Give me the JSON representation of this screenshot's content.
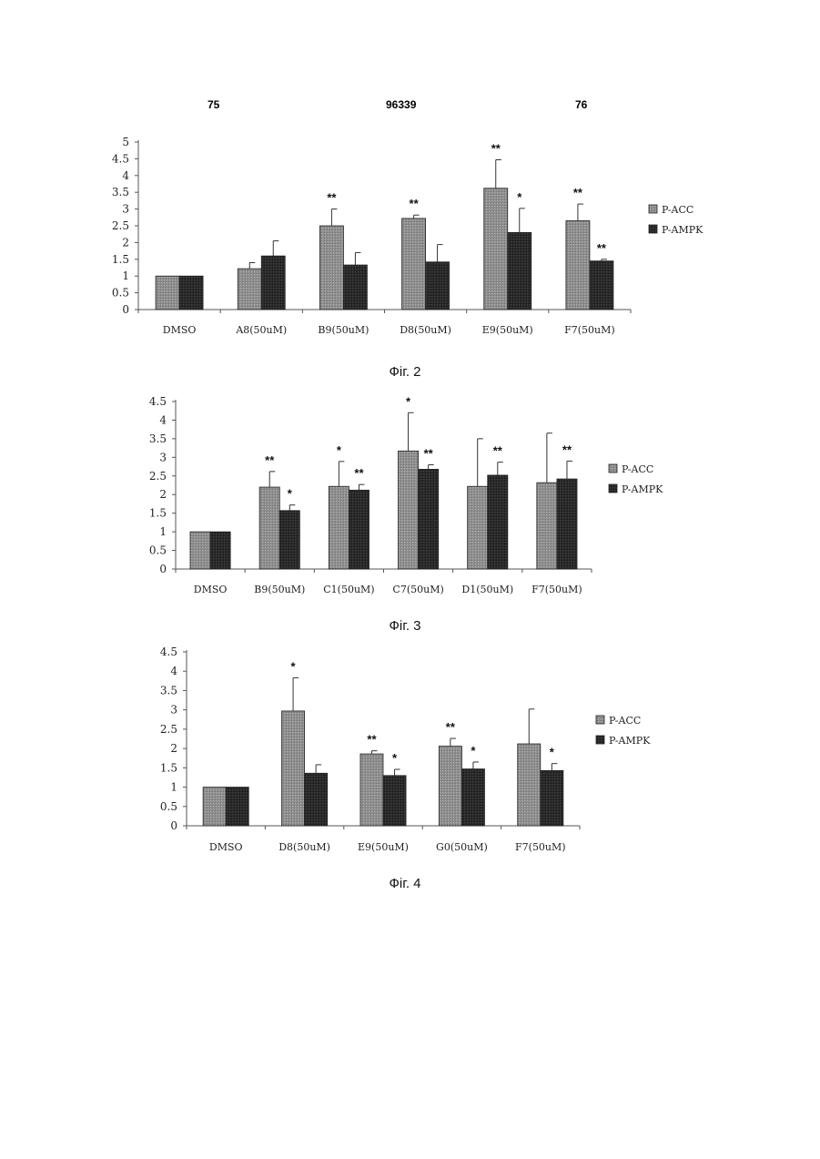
{
  "header": {
    "left": "75",
    "center": "96339",
    "right": "76"
  },
  "colors": {
    "p_acc": "#8f8f8f",
    "p_ampk": "#2b2b2b",
    "axis": "#555555"
  },
  "chart_data": [
    {
      "type": "bar",
      "caption": "Фіг. 2",
      "categories": [
        "DMSO",
        "A8(50uM)",
        "B9(50uM)",
        "D8(50uM)",
        "E9(50uM)",
        "F7(50uM)"
      ],
      "series": [
        {
          "name": "P-ACC",
          "values": [
            1,
            1.22,
            2.5,
            2.72,
            3.62,
            2.65
          ],
          "errors": [
            0,
            0.18,
            0.5,
            0.1,
            0.85,
            0.5
          ],
          "sig": [
            "",
            "",
            "**",
            "**",
            "**",
            "**"
          ]
        },
        {
          "name": "P-AMPK",
          "values": [
            1,
            1.6,
            1.33,
            1.42,
            2.3,
            1.45
          ],
          "errors": [
            0,
            0.45,
            0.37,
            0.52,
            0.72,
            0.05
          ],
          "sig": [
            "",
            "",
            "",
            "",
            "*",
            "**"
          ]
        }
      ],
      "ylim": [
        0,
        5
      ],
      "yticks": [
        0,
        0.5,
        1,
        1.5,
        2,
        2.5,
        3,
        3.5,
        4,
        4.5,
        5
      ],
      "ytick_labels": [
        "0",
        "0.5",
        "1",
        "1.5",
        "2",
        "2.5",
        "3",
        "3.5",
        "4",
        "4.5",
        "5"
      ],
      "legend_position": "right"
    },
    {
      "type": "bar",
      "caption": "Фіг. 3",
      "categories": [
        "DMSO",
        "B9(50uM)",
        "C1(50uM)",
        "C7(50uM)",
        "D1(50uM)",
        "F7(50uM)"
      ],
      "series": [
        {
          "name": "P-ACC",
          "values": [
            1,
            2.2,
            2.22,
            3.17,
            2.22,
            2.32
          ],
          "errors": [
            0,
            0.42,
            0.67,
            1.03,
            1.28,
            1.33
          ],
          "sig": [
            "",
            "**",
            "*",
            "*",
            "",
            ""
          ]
        },
        {
          "name": "P-AMPK",
          "values": [
            1,
            1.57,
            2.12,
            2.68,
            2.52,
            2.42
          ],
          "errors": [
            0,
            0.15,
            0.15,
            0.12,
            0.35,
            0.48
          ],
          "sig": [
            "",
            "*",
            "**",
            "**",
            "**",
            "**"
          ]
        }
      ],
      "ylim": [
        0,
        4.5
      ],
      "yticks": [
        0,
        0.5,
        1,
        1.5,
        2,
        2.5,
        3,
        3.5,
        4,
        4.5
      ],
      "ytick_labels": [
        "0",
        "0.5",
        "1",
        "1.5",
        "2",
        "2.5",
        "3",
        "3.5",
        "4",
        "4.5"
      ],
      "legend_position": "right"
    },
    {
      "type": "bar",
      "caption": "Фіг. 4",
      "categories": [
        "DMSO",
        "D8(50uM)",
        "E9(50uM)",
        "G0(50uM)",
        "F7(50uM)"
      ],
      "series": [
        {
          "name": "P-ACC",
          "values": [
            1,
            2.97,
            1.86,
            2.06,
            2.12
          ],
          "errors": [
            0,
            0.86,
            0.08,
            0.2,
            0.9
          ],
          "sig": [
            "",
            "*",
            "**",
            "**",
            ""
          ]
        },
        {
          "name": "P-AMPK",
          "values": [
            1,
            1.36,
            1.3,
            1.47,
            1.43
          ],
          "errors": [
            0,
            0.22,
            0.16,
            0.18,
            0.18
          ],
          "sig": [
            "",
            "",
            "*",
            "*",
            "*"
          ]
        }
      ],
      "ylim": [
        0,
        4.5
      ],
      "yticks": [
        0,
        0.5,
        1,
        1.5,
        2,
        2.5,
        3,
        3.5,
        4,
        4.5
      ],
      "ytick_labels": [
        "0",
        "0.5",
        "1",
        "1.5",
        "2",
        "2.5",
        "3",
        "3.5",
        "4",
        "4.5"
      ],
      "legend_position": "right"
    }
  ]
}
